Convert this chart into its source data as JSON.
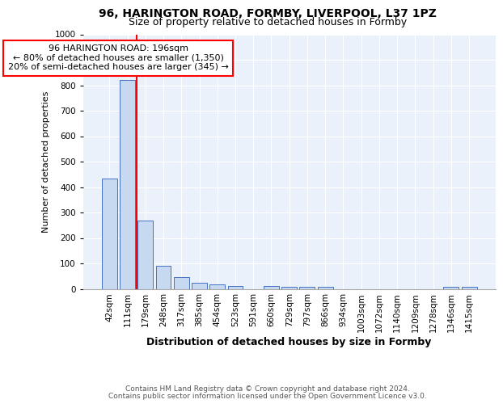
{
  "title1": "96, HARINGTON ROAD, FORMBY, LIVERPOOL, L37 1PZ",
  "title2": "Size of property relative to detached houses in Formby",
  "xlabel": "Distribution of detached houses by size in Formby",
  "ylabel": "Number of detached properties",
  "categories": [
    "42sqm",
    "111sqm",
    "179sqm",
    "248sqm",
    "317sqm",
    "385sqm",
    "454sqm",
    "523sqm",
    "591sqm",
    "660sqm",
    "729sqm",
    "797sqm",
    "866sqm",
    "934sqm",
    "1003sqm",
    "1072sqm",
    "1140sqm",
    "1209sqm",
    "1278sqm",
    "1346sqm",
    "1415sqm"
  ],
  "values": [
    434,
    820,
    268,
    92,
    46,
    23,
    16,
    10,
    0,
    11,
    8,
    7,
    8,
    0,
    0,
    0,
    0,
    0,
    0,
    8,
    8
  ],
  "bar_color": "#c6d9f0",
  "bar_edge_color": "#4472c4",
  "property_line_index": 2,
  "annotation_text": "96 HARINGTON ROAD: 196sqm\n← 80% of detached houses are smaller (1,350)\n20% of semi-detached houses are larger (345) →",
  "annotation_box_color": "white",
  "annotation_box_edge_color": "red",
  "footer1": "Contains HM Land Registry data © Crown copyright and database right 2024.",
  "footer2": "Contains public sector information licensed under the Open Government Licence v3.0.",
  "ylim": [
    0,
    1000
  ],
  "yticks": [
    0,
    100,
    200,
    300,
    400,
    500,
    600,
    700,
    800,
    900,
    1000
  ],
  "background_color": "#eaf1fb",
  "title1_fontsize": 10,
  "title2_fontsize": 9,
  "xlabel_fontsize": 9,
  "ylabel_fontsize": 8,
  "tick_fontsize": 7.5,
  "annotation_fontsize": 8,
  "footer_fontsize": 6.5
}
